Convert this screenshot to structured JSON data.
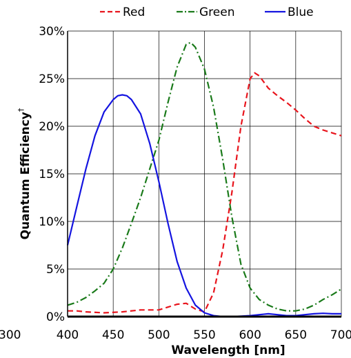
{
  "chart_data": {
    "type": "line",
    "title": "",
    "xlabel": "Wavelength [nm]",
    "ylabel": "Quantum Efficiency",
    "ylabel_superscript": "†",
    "xlim": [
      400,
      700
    ],
    "ylim": [
      0,
      30
    ],
    "x_ticks": [
      400,
      450,
      500,
      550,
      600,
      650,
      700
    ],
    "x_tick_labels": [
      "400",
      "450",
      "500",
      "550",
      "600",
      "650",
      "700"
    ],
    "y_ticks": [
      0,
      5,
      10,
      15,
      20,
      25,
      30
    ],
    "y_tick_labels": [
      "0%",
      "5%",
      "10%",
      "15%",
      "20%",
      "25%",
      "30%"
    ],
    "clipped_left_label": "300",
    "grid": true,
    "legend_position": "top",
    "series": [
      {
        "name": "Red",
        "color": "#e8141c",
        "style": "dashed",
        "x": [
          400,
          410,
          420,
          440,
          460,
          480,
          500,
          510,
          520,
          530,
          540,
          550,
          560,
          570,
          580,
          590,
          600,
          605,
          610,
          620,
          630,
          640,
          650,
          660,
          670,
          680,
          690,
          700
        ],
        "y": [
          0.6,
          0.6,
          0.5,
          0.4,
          0.5,
          0.7,
          0.7,
          1.0,
          1.3,
          1.4,
          0.8,
          0.5,
          2.5,
          7,
          13,
          20,
          25,
          25.6,
          25.3,
          24,
          23.2,
          22.5,
          21.7,
          20.8,
          20.0,
          19.6,
          19.3,
          19.0
        ]
      },
      {
        "name": "Green",
        "color": "#1a7a1a",
        "style": "dashdot",
        "x": [
          400,
          410,
          420,
          430,
          440,
          450,
          460,
          470,
          480,
          490,
          500,
          510,
          520,
          530,
          535,
          540,
          550,
          560,
          570,
          580,
          590,
          600,
          610,
          620,
          630,
          640,
          650,
          660,
          670,
          680,
          690,
          700
        ],
        "y": [
          1.2,
          1.5,
          2.0,
          2.7,
          3.5,
          5.0,
          7.2,
          9.8,
          12.5,
          15.5,
          18.5,
          22.5,
          26.2,
          28.6,
          28.8,
          28.3,
          26.0,
          22.0,
          16.5,
          10.5,
          5.5,
          3.0,
          1.8,
          1.2,
          0.8,
          0.6,
          0.6,
          0.8,
          1.2,
          1.8,
          2.3,
          2.9
        ]
      },
      {
        "name": "Blue",
        "color": "#1414e0",
        "style": "solid",
        "x": [
          400,
          410,
          420,
          430,
          440,
          450,
          455,
          460,
          465,
          470,
          480,
          490,
          500,
          510,
          520,
          530,
          540,
          550,
          560,
          570,
          580,
          590,
          600,
          610,
          620,
          630,
          640,
          650,
          660,
          670,
          680,
          690,
          700
        ],
        "y": [
          7.5,
          11.5,
          15.5,
          19.0,
          21.5,
          22.8,
          23.2,
          23.3,
          23.2,
          22.8,
          21.3,
          18.2,
          14.2,
          9.8,
          5.8,
          3.0,
          1.2,
          0.4,
          0.1,
          0.0,
          0.0,
          0.05,
          0.1,
          0.2,
          0.3,
          0.2,
          0.1,
          0.1,
          0.2,
          0.3,
          0.35,
          0.3,
          0.3
        ]
      }
    ]
  }
}
